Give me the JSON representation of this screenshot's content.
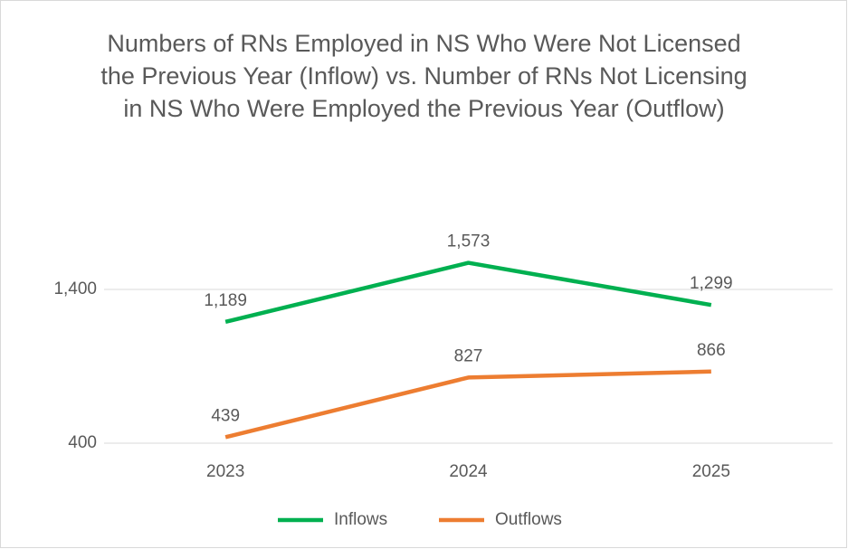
{
  "chart_data": {
    "type": "line",
    "title": "Numbers of RNs Employed in NS Who Were Not Licensed the Previous Year (Inflow) vs. Number of RNs Not Licensing in NS Who Were Employed the Previous Year (Outflow)",
    "categories": [
      "2023",
      "2024",
      "2025"
    ],
    "series": [
      {
        "name": "Inflows",
        "color": "#00b050",
        "values": [
          1189,
          1573,
          1299
        ],
        "value_labels": [
          "1,189",
          "1,573",
          "1,299"
        ]
      },
      {
        "name": "Outflows",
        "color": "#ed7d31",
        "values": [
          439,
          827,
          866
        ],
        "value_labels": [
          "439",
          "827",
          "866"
        ]
      }
    ],
    "ylim": [
      400,
      1800
    ],
    "yticks": [
      {
        "value": 400,
        "label": "400"
      },
      {
        "value": 1400,
        "label": "1,400"
      }
    ],
    "grid": true,
    "legend": "bottom"
  }
}
